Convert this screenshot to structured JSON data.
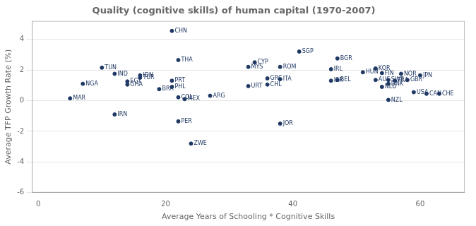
{
  "chart_data": {
    "type": "scatter",
    "title": "Quality (cognitive skills) of human capital (1970-2007)",
    "x_label": "Average Years of Schooling * Cognitive Skills",
    "y_label": "Average TFP Growth Rate (%)",
    "xlim": [
      -1,
      67
    ],
    "ylim": [
      -6,
      5.2
    ],
    "xticks": [
      0,
      20,
      40,
      60
    ],
    "yticks": [
      -6,
      -4,
      -2,
      0,
      2,
      4
    ],
    "grid": "y",
    "color": "#1f3864",
    "point_labels": [
      "CHN",
      "SGP",
      "THA",
      "CYP",
      "BGR",
      "TUN",
      "MYS",
      "ROM",
      "IRL",
      "KOR",
      "IND",
      "IDN",
      "HUN",
      "FIN",
      "NOR",
      "NGA",
      "EGY",
      "TUR",
      "GRC",
      "ITA",
      "PRT",
      "GHA",
      "CHL",
      "ISR",
      "BEL",
      "AUS",
      "SWE",
      "GBR",
      "JPN",
      "FRA",
      "BRA",
      "PHL",
      "URT",
      "DNK",
      "NLD",
      "MAR",
      "COL",
      "MEX",
      "ARG",
      "USA",
      "CAN",
      "CHE",
      "NZL",
      "IRN",
      "PER",
      "JOR",
      "ZWE"
    ],
    "x": [
      21,
      41,
      22,
      34,
      47,
      10,
      33,
      38,
      46,
      53,
      12,
      16,
      51,
      54,
      57,
      7,
      14,
      16,
      36,
      38,
      21,
      14,
      36,
      46,
      47,
      53,
      55,
      58,
      60,
      56,
      19,
      21,
      33,
      55,
      54,
      5,
      22,
      23,
      27,
      59,
      61,
      63,
      55,
      12,
      22,
      38,
      24
    ],
    "values": [
      4.55,
      3.2,
      2.65,
      2.5,
      2.75,
      2.15,
      2.2,
      2.2,
      2.05,
      2.1,
      1.75,
      1.65,
      1.85,
      1.8,
      1.75,
      1.1,
      1.25,
      1.5,
      1.45,
      1.4,
      1.3,
      1.05,
      1.05,
      1.3,
      1.35,
      1.35,
      1.35,
      1.35,
      1.65,
      1.3,
      0.75,
      0.9,
      0.95,
      1.1,
      0.9,
      0.15,
      0.22,
      0.1,
      0.32,
      0.55,
      0.45,
      0.45,
      0.05,
      -0.9,
      -1.35,
      -1.5,
      -2.8
    ]
  }
}
